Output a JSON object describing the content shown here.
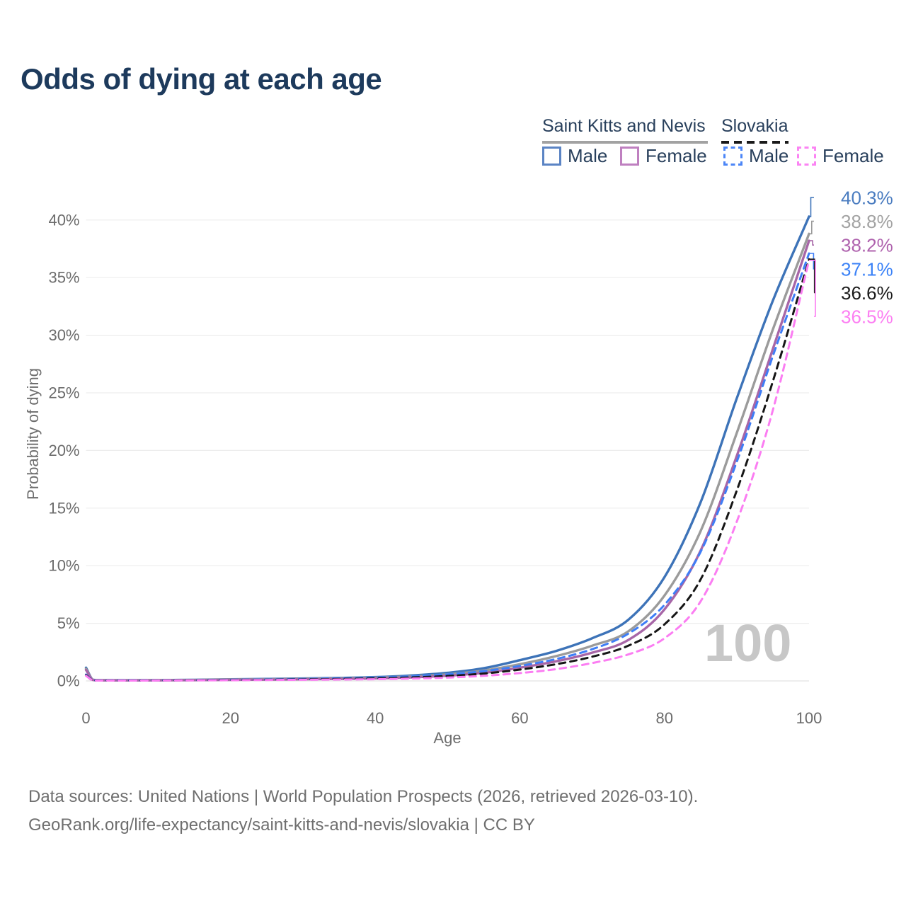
{
  "title": "Odds of dying at each age",
  "legend": {
    "groups": [
      {
        "label": "Saint Kitts and Nevis",
        "line_style": "solid",
        "line_color": "#a2a2a2",
        "items": [
          {
            "label": "Male",
            "swatch_color": "#5b84c4",
            "swatch_style": "solid"
          },
          {
            "label": "Female",
            "swatch_color": "#bf80c0",
            "swatch_style": "solid"
          }
        ]
      },
      {
        "label": "Slovakia",
        "line_style": "dashed",
        "line_color": "#1a1a1a",
        "items": [
          {
            "label": "Male",
            "swatch_color": "#4c86f7",
            "swatch_style": "dashed"
          },
          {
            "label": "Female",
            "swatch_color": "#fb84f3",
            "swatch_style": "dashed"
          }
        ]
      }
    ]
  },
  "watermark": "100",
  "footer": {
    "line1": "Data sources: United Nations | World Population Prospects (2026, retrieved 2026-03-10).",
    "line2": "GeoRank.org/life-expectancy/saint-kitts-and-nevis/slovakia | CC BY"
  },
  "chart_data": {
    "type": "line",
    "title": "Odds of dying at each age",
    "xlabel": "Age",
    "ylabel": "Probability of dying",
    "xlim": [
      0,
      100
    ],
    "ylim_percent": [
      0,
      43
    ],
    "xticks": [
      0,
      20,
      40,
      60,
      80,
      100
    ],
    "yticks_percent": [
      0,
      5,
      10,
      15,
      20,
      25,
      30,
      35,
      40
    ],
    "ytick_suffix": "%",
    "grid": "horizontal",
    "legend_position": "top-right",
    "ages": [
      0,
      1,
      2,
      5,
      10,
      15,
      20,
      25,
      30,
      35,
      40,
      45,
      50,
      55,
      60,
      65,
      70,
      75,
      80,
      85,
      90,
      95,
      100
    ],
    "series": [
      {
        "name": "Saint Kitts and Nevis — Male",
        "country": "Saint Kitts and Nevis",
        "sex": "Male",
        "style": "solid",
        "color": "#3d73b8",
        "label_color": "#4a7cc0",
        "flag": "kn",
        "end_label": "40.3%",
        "values_percent": [
          1.15,
          0.1,
          0.07,
          0.06,
          0.07,
          0.1,
          0.14,
          0.17,
          0.21,
          0.26,
          0.33,
          0.47,
          0.7,
          1.1,
          1.8,
          2.6,
          3.7,
          5.3,
          9.0,
          15.5,
          24.5,
          33.0,
          40.3
        ]
      },
      {
        "name": "Saint Kitts and Nevis — Total",
        "country": "Saint Kitts and Nevis",
        "sex": "Total",
        "style": "solid",
        "color": "#9b9b9b",
        "label_color": "#a3a3a3",
        "flag": "kn",
        "end_label": "38.8%",
        "values_percent": [
          1.05,
          0.09,
          0.06,
          0.05,
          0.06,
          0.08,
          0.12,
          0.14,
          0.18,
          0.22,
          0.28,
          0.39,
          0.57,
          0.9,
          1.45,
          2.15,
          3.05,
          4.3,
          7.4,
          13.0,
          21.5,
          30.5,
          38.8
        ]
      },
      {
        "name": "Saint Kitts and Nevis — Female",
        "country": "Saint Kitts and Nevis",
        "sex": "Female",
        "style": "solid",
        "color": "#a766a7",
        "label_color": "#af63ae",
        "flag": "kn",
        "end_label": "38.2%",
        "values_percent": [
          0.95,
          0.08,
          0.05,
          0.045,
          0.05,
          0.07,
          0.09,
          0.11,
          0.14,
          0.17,
          0.22,
          0.31,
          0.45,
          0.7,
          1.15,
          1.7,
          2.45,
          3.55,
          6.2,
          11.3,
          19.5,
          28.8,
          38.2
        ]
      },
      {
        "name": "Slovakia — Male",
        "country": "Slovakia",
        "sex": "Male",
        "style": "dashed",
        "color": "#3e7ef7",
        "label_color": "#3b82f7",
        "flag": "sk",
        "end_label": "37.1%",
        "values_percent": [
          0.55,
          0.06,
          0.04,
          0.04,
          0.05,
          0.07,
          0.1,
          0.13,
          0.17,
          0.22,
          0.29,
          0.4,
          0.57,
          0.85,
          1.3,
          1.9,
          2.75,
          4.1,
          6.6,
          11.2,
          19.0,
          28.2,
          37.1
        ]
      },
      {
        "name": "Slovakia — Total",
        "country": "Slovakia",
        "sex": "Total",
        "style": "dashed",
        "color": "#161616",
        "label_color": "#1b1b1b",
        "flag": "sk",
        "end_label": "36.6%",
        "values_percent": [
          0.5,
          0.05,
          0.035,
          0.035,
          0.04,
          0.06,
          0.08,
          0.1,
          0.13,
          0.17,
          0.22,
          0.3,
          0.43,
          0.64,
          0.98,
          1.45,
          2.1,
          3.05,
          4.9,
          8.8,
          16.5,
          26.0,
          36.6
        ]
      },
      {
        "name": "Slovakia — Female",
        "country": "Slovakia",
        "sex": "Female",
        "style": "dashed",
        "color": "#fb7df2",
        "label_color": "#fc7ff2",
        "flag": "sk",
        "end_label": "36.5%",
        "values_percent": [
          0.45,
          0.045,
          0.03,
          0.03,
          0.035,
          0.05,
          0.06,
          0.08,
          0.1,
          0.12,
          0.15,
          0.2,
          0.29,
          0.44,
          0.68,
          1.02,
          1.55,
          2.3,
          3.7,
          6.9,
          13.8,
          23.5,
          36.5
        ]
      }
    ]
  }
}
